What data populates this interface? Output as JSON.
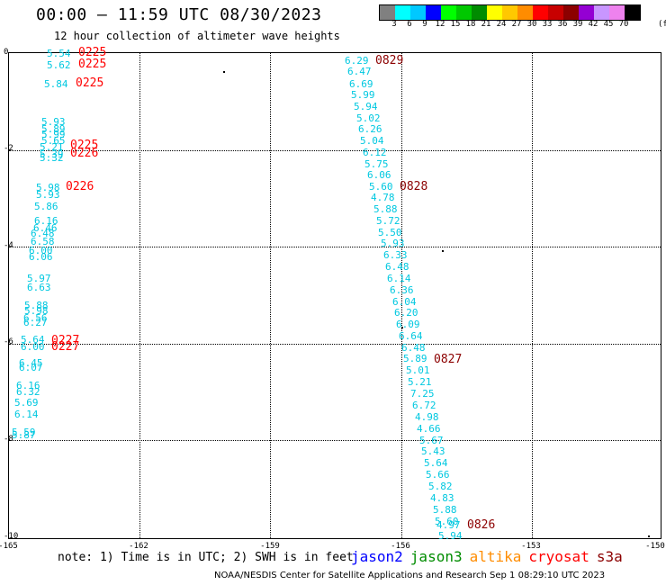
{
  "title": "00:00 — 11:59 UTC 08/30/2023",
  "subtitle": "12 hour collection of altimeter wave heights",
  "colorbar": {
    "colors": [
      "#808080",
      "#00ffff",
      "#00c8ff",
      "#0000ff",
      "#00ff00",
      "#00c800",
      "#008c00",
      "#ffff00",
      "#ffc800",
      "#ff8c00",
      "#ff0000",
      "#c80000",
      "#8c0000",
      "#9400d3",
      "#c896ff",
      "#ee82ee",
      "#000000"
    ],
    "labels": [
      "3",
      "6",
      "9",
      "12",
      "15",
      "18",
      "21",
      "24",
      "27",
      "30",
      "33",
      "36",
      "39",
      "42",
      "45",
      "70"
    ],
    "unit": "(ft)"
  },
  "axes": {
    "y_ticks": [
      "0",
      "-2",
      "-4",
      "-6",
      "-8",
      "-10"
    ],
    "x_ticks": [
      "-165",
      "-162",
      "-159",
      "-156",
      "-153",
      "-150"
    ]
  },
  "left_track": {
    "swh": [
      "5.54",
      "5.62",
      "5.84",
      "5.93",
      "5.89",
      "5.99",
      "5.65",
      "5.21",
      "5.39",
      "5.32",
      "5.98",
      "5.93",
      "5.86",
      "6.16",
      "6.46",
      "6.48",
      "6.58",
      "6.00",
      "6.06",
      "5.97",
      "6.63",
      "5.88",
      "5.98",
      "6.56",
      "6.27",
      "5.64",
      "6.00",
      "6.45",
      "6.07",
      "6.16",
      "6.32",
      "5.69",
      "6.14",
      "5.59",
      "5.87"
    ],
    "times": [
      "0225",
      "0225",
      "0225",
      "0225",
      "0226",
      "0226",
      "0227",
      "0227"
    ]
  },
  "right_track": {
    "swh": [
      "6.29",
      "6.47",
      "6.69",
      "5.99",
      "5.94",
      "5.02",
      "6.26",
      "5.04",
      "6.12",
      "5.75",
      "6.06",
      "5.60",
      "4.78",
      "5.88",
      "5.72",
      "5.50",
      "5.93",
      "6.33",
      "6.48",
      "6.14",
      "6.36",
      "6.04",
      "6.20",
      "6.09",
      "6.64",
      "6.48",
      "5.89",
      "5.01",
      "5.21",
      "7.25",
      "6.72",
      "4.98",
      "4.66",
      "5.67",
      "5.43",
      "5.64",
      "5.66",
      "5.82",
      "4.83",
      "5.88",
      "5.60",
      "4.97",
      "5.94"
    ],
    "times": [
      "0829",
      "0828",
      "0827",
      "0826"
    ]
  },
  "note": "note: 1) Time is in UTC; 2) SWH is in feet",
  "satellites": [
    {
      "name": "jason2",
      "color": "#0000ff"
    },
    {
      "name": "jason3",
      "color": "#008c00"
    },
    {
      "name": "altika",
      "color": "#ff8c00"
    },
    {
      "name": "cryosat",
      "color": "#ff0000"
    },
    {
      "name": "s3a",
      "color": "#8c0000"
    }
  ],
  "footer": "NOAA/NESDIS Center for Satellite Applications and Research    Sep  1 08:29:10 UTC 2023"
}
